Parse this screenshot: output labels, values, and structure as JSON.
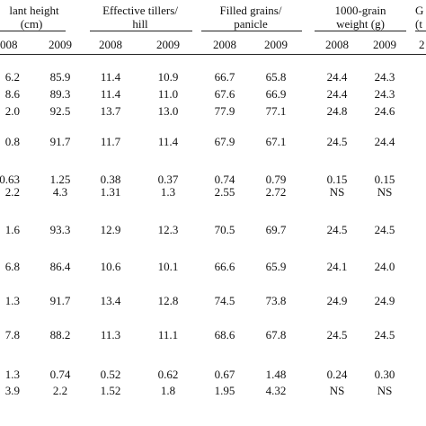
{
  "headers": {
    "plant_height": [
      "lant height",
      "(cm)"
    ],
    "tillers": [
      "Effective tillers/",
      "hill"
    ],
    "grains": [
      "Filled grains/",
      "panicle"
    ],
    "weight": [
      "1000-grain",
      "weight (g)"
    ],
    "gy": [
      "G",
      "(t"
    ]
  },
  "years": [
    "008",
    "2009",
    "2008",
    "2009",
    "2008",
    "2009",
    "2008",
    "2009",
    "2"
  ],
  "rows": [
    [
      "6.2",
      "85.9",
      "11.4",
      "10.9",
      "66.7",
      "65.8",
      "24.4",
      "24.3"
    ],
    [
      "8.6",
      "89.3",
      "11.4",
      "11.0",
      "67.6",
      "66.9",
      "24.4",
      "24.3"
    ],
    [
      "2.0",
      "92.5",
      "13.7",
      "13.0",
      "77.9",
      "77.1",
      "24.8",
      "24.6"
    ],
    [
      "0.8",
      "91.7",
      "11.7",
      "11.4",
      "67.9",
      "67.1",
      "24.5",
      "24.4"
    ],
    [
      "0.63",
      "1.25",
      "0.38",
      "0.37",
      "0.74",
      "0.79",
      "0.15",
      "0.15"
    ],
    [
      "2.2",
      "4.3",
      "1.31",
      "1.3",
      "2.55",
      "2.72",
      "NS",
      "NS"
    ],
    [
      "1.6",
      "93.3",
      "12.9",
      "12.3",
      "70.5",
      "69.7",
      "24.5",
      "24.5"
    ],
    [
      "6.8",
      "86.4",
      "10.6",
      "10.1",
      "66.6",
      "65.9",
      "24.1",
      "24.0"
    ],
    [
      "1.3",
      "91.7",
      "13.4",
      "12.8",
      "74.5",
      "73.8",
      "24.9",
      "24.9"
    ],
    [
      "7.8",
      "88.2",
      "11.3",
      "11.1",
      "68.6",
      "67.8",
      "24.5",
      "24.5"
    ],
    [
      "1.3",
      "0.74",
      "0.52",
      "0.62",
      "0.67",
      "1.48",
      "0.24",
      "0.30"
    ],
    [
      "3.9",
      "2.2",
      "1.52",
      "1.8",
      "1.95",
      "4.32",
      "NS",
      "NS"
    ]
  ]
}
